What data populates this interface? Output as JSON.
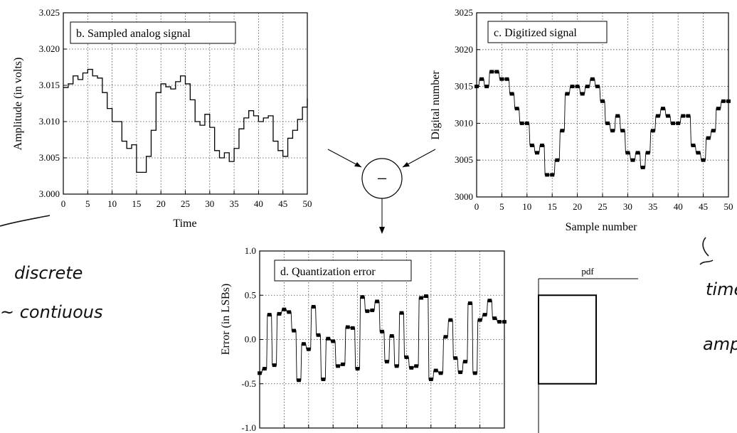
{
  "chart_data": [
    {
      "id": "b",
      "type": "line",
      "title": "b. Sampled analog signal",
      "xlabel": "Time",
      "ylabel": "Amplitude (in volts)",
      "xlim": [
        0,
        50
      ],
      "ylim": [
        3.0,
        3.025
      ],
      "xticks": [
        "0",
        "5",
        "10",
        "15",
        "20",
        "25",
        "30",
        "35",
        "40",
        "45",
        "50"
      ],
      "yticks": [
        "3.000",
        "3.005",
        "3.010",
        "3.015",
        "3.020",
        "3.025"
      ],
      "grid": true,
      "series": [
        {
          "style": "step",
          "x": [
            0,
            1,
            2,
            3,
            4,
            5,
            6,
            7,
            8,
            9,
            10,
            11,
            12,
            13,
            14,
            15,
            16,
            17,
            18,
            19,
            20,
            21,
            22,
            23,
            24,
            25,
            26,
            27,
            28,
            29,
            30,
            31,
            32,
            33,
            34,
            35,
            36,
            37,
            38,
            39,
            40,
            41,
            42,
            43,
            44,
            45,
            46,
            47,
            48,
            49,
            50
          ],
          "y": [
            3.0147,
            3.0152,
            3.0163,
            3.0158,
            3.0167,
            3.0172,
            3.0163,
            3.016,
            3.014,
            3.0118,
            3.01,
            3.01,
            3.0073,
            3.0063,
            3.0068,
            3.003,
            3.003,
            3.0052,
            3.0088,
            3.014,
            3.0152,
            3.0148,
            3.0145,
            3.0155,
            3.0163,
            3.0152,
            3.013,
            3.01,
            3.0095,
            3.011,
            3.0092,
            3.006,
            3.005,
            3.0057,
            3.0045,
            3.0063,
            3.009,
            3.0105,
            3.0115,
            3.0108,
            3.01,
            3.0105,
            3.0108,
            3.0073,
            3.006,
            3.0052,
            3.0077,
            3.0088,
            3.0103,
            3.012,
            3.0132
          ]
        }
      ]
    },
    {
      "id": "c",
      "type": "scatter",
      "title": "c. Digitized signal",
      "xlabel": "Sample number",
      "ylabel": "Digital number",
      "xlim": [
        0,
        50
      ],
      "ylim": [
        3000,
        3025
      ],
      "xticks": [
        "0",
        "5",
        "10",
        "15",
        "20",
        "25",
        "30",
        "35",
        "40",
        "45",
        "50"
      ],
      "yticks": [
        "3000",
        "3005",
        "3010",
        "3015",
        "3020",
        "3025"
      ],
      "grid": true,
      "series": [
        {
          "style": "dash-markers-connected",
          "x": [
            0,
            1,
            2,
            3,
            4,
            5,
            6,
            7,
            8,
            9,
            10,
            11,
            12,
            13,
            14,
            15,
            16,
            17,
            18,
            19,
            20,
            21,
            22,
            23,
            24,
            25,
            26,
            27,
            28,
            29,
            30,
            31,
            32,
            33,
            34,
            35,
            36,
            37,
            38,
            39,
            40,
            41,
            42,
            43,
            44,
            45,
            46,
            47,
            48,
            49,
            50
          ],
          "y": [
            3015,
            3016,
            3015,
            3017,
            3017,
            3016,
            3016,
            3014,
            3012,
            3010,
            3010,
            3007,
            3006,
            3007,
            3003,
            3003,
            3005,
            3009,
            3014,
            3015,
            3015,
            3014,
            3015,
            3016,
            3015,
            3013,
            3010,
            3009,
            3011,
            3009,
            3006,
            3005,
            3006,
            3004,
            3006,
            3009,
            3011,
            3012,
            3011,
            3010,
            3010,
            3011,
            3011,
            3007,
            3006,
            3005,
            3008,
            3009,
            3012,
            3013,
            3013
          ]
        }
      ]
    },
    {
      "id": "d",
      "type": "scatter",
      "title": "d. Quantization error",
      "xlabel": "",
      "ylabel": "Error (in LSBs)",
      "xlim": [
        0,
        50
      ],
      "ylim": [
        -1.0,
        1.0
      ],
      "yticks": [
        "1.0",
        "0.5",
        "0.0",
        "-0.5",
        "-1.0"
      ],
      "grid": true,
      "series": [
        {
          "style": "dash-markers-connected",
          "x": [
            0,
            1,
            2,
            3,
            4,
            5,
            6,
            7,
            8,
            9,
            10,
            11,
            12,
            13,
            14,
            15,
            16,
            17,
            18,
            19,
            20,
            21,
            22,
            23,
            24,
            25,
            26,
            27,
            28,
            29,
            30,
            31,
            32,
            33,
            34,
            35,
            36,
            37,
            38,
            39,
            40,
            41,
            42,
            43,
            44,
            45,
            46,
            47,
            48,
            49,
            50
          ],
          "y": [
            -0.38,
            -0.33,
            0.28,
            -0.29,
            0.29,
            0.34,
            0.31,
            0.1,
            -0.46,
            -0.05,
            -0.11,
            0.37,
            0.05,
            -0.45,
            0.01,
            -0.02,
            -0.3,
            -0.28,
            0.14,
            0.13,
            -0.33,
            0.48,
            0.32,
            0.33,
            0.43,
            0.09,
            -0.25,
            0.04,
            -0.3,
            0.3,
            -0.2,
            -0.32,
            -0.3,
            0.47,
            0.49,
            -0.45,
            -0.35,
            -0.38,
            0.03,
            0.22,
            -0.21,
            -0.37,
            -0.25,
            0.41,
            -0.38,
            0.22,
            0.28,
            0.44,
            0.24,
            0.2,
            0.2
          ]
        }
      ]
    },
    {
      "id": "pdf",
      "type": "area",
      "title": "pdf",
      "xlabel": "",
      "ylabel": "",
      "ylim": [
        -1.0,
        1.0
      ],
      "series": [
        {
          "style": "rect",
          "lower": -0.5,
          "upper": 0.5
        }
      ]
    }
  ],
  "diagram": {
    "operator_symbol": "−"
  },
  "annotations": {
    "left_1": "discrete",
    "left_2": "~ contiuous",
    "right_1": "time",
    "right_2": "amp"
  },
  "colors": {
    "ink": "#000000",
    "grid": "#444444",
    "handwriting": "#111111"
  }
}
